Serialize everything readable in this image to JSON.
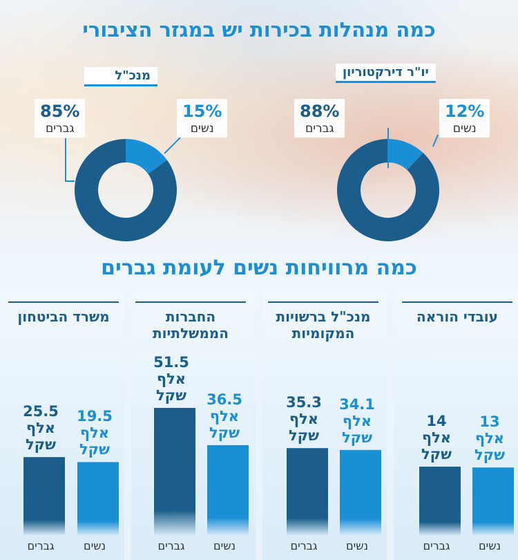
{
  "title_top": "כמה מנהלות בכירות יש במגזר הציבורי",
  "title_mid": "כמה מרוויחות נשים לעומת גברים",
  "colors": {
    "men": "#1b5e8c",
    "women": "#1a8fd6",
    "accent": "#1a8fd6"
  },
  "donuts": [
    {
      "label": "יו\"ר דירקטוריון",
      "women": {
        "pct": "12%",
        "name": "נשים"
      },
      "men": {
        "pct": "88%",
        "name": "גברים"
      }
    },
    {
      "label": "מנכ\"ל",
      "women": {
        "pct": "15%",
        "name": "נשים"
      },
      "men": {
        "pct": "85%",
        "name": "גברים"
      }
    }
  ],
  "bars_groups": [
    {
      "title": "עובדי הוראה",
      "men": {
        "line1": "14",
        "line2": "אלף",
        "line3": "שקל"
      },
      "women": {
        "line1": "13",
        "line2": "אלף",
        "line3": "שקל"
      },
      "men_label": "גברים",
      "women_label": "נשים"
    },
    {
      "title": "מנכ\"ל ברשויות המקומיות",
      "men": {
        "line1": "35.3",
        "line2": "אלף",
        "line3": "שקל"
      },
      "women": {
        "line1": "34.1",
        "line2": "אלף",
        "line3": "שקל"
      },
      "men_label": "גברים",
      "women_label": "נשים"
    },
    {
      "title": "החברות הממשלתיות",
      "men": {
        "line1": "51.5",
        "line2": "אלף",
        "line3": "שקל"
      },
      "women": {
        "line1": "36.5",
        "line2": "אלף",
        "line3": "שקל"
      },
      "men_label": "גברים",
      "women_label": "נשים"
    },
    {
      "title": "משרד הביטחון",
      "men": {
        "line1": "25.5",
        "line2": "אלף",
        "line3": "שקל"
      },
      "women": {
        "line1": "19.5",
        "line2": "אלף",
        "line3": "שקל"
      },
      "men_label": "גברים",
      "women_label": "נשים"
    }
  ],
  "chart_data": [
    {
      "type": "pie",
      "title": "יו\"ר דירקטוריון",
      "categories": [
        "נשים",
        "גברים"
      ],
      "values": [
        12,
        88
      ]
    },
    {
      "type": "pie",
      "title": "מנכ\"ל",
      "categories": [
        "נשים",
        "גברים"
      ],
      "values": [
        15,
        85
      ]
    },
    {
      "type": "bar",
      "title": "כמה מרוויחות נשים לעומת גברים",
      "categories": [
        "עובדי הוראה",
        "מנכ\"ל ברשויות המקומיות",
        "החברות הממשלתיות",
        "משרד הביטחון"
      ],
      "series": [
        {
          "name": "גברים",
          "values": [
            14,
            35.3,
            51.5,
            25.5
          ]
        },
        {
          "name": "נשים",
          "values": [
            13,
            34.1,
            36.5,
            19.5
          ]
        }
      ]
    }
  ]
}
